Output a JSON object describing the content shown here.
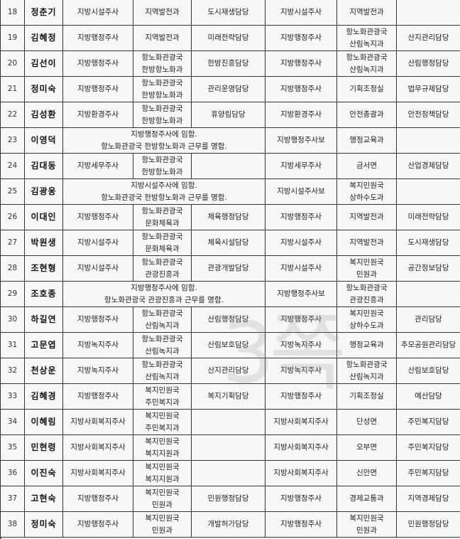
{
  "watermark": "3쪽",
  "rows": [
    {
      "no": "18",
      "name": "정춘기",
      "rank": "지방시설주사",
      "dept": [
        "지역발전과"
      ],
      "team": "도시재생담당",
      "new_rank": "지방시설주사",
      "new_dept": [
        "지역발전과"
      ],
      "new_team": ""
    },
    {
      "no": "19",
      "name": "김혜정",
      "rank": "지방행정주사",
      "dept": [
        "지역발전과"
      ],
      "team": "미래전략담당",
      "new_rank": "지방행정주사",
      "new_dept": [
        "항노화관광국",
        "산림녹지과"
      ],
      "new_team": "산지관리담당"
    },
    {
      "no": "20",
      "name": "김선이",
      "rank": "지방행정주사",
      "dept": [
        "항노화관광국",
        "한방항노화과"
      ],
      "team": "한방진흥담당",
      "new_rank": "지방행정주사",
      "new_dept": [
        "항노화관광국",
        "산림녹지과"
      ],
      "new_team": "산림행정담당"
    },
    {
      "no": "21",
      "name": "정미숙",
      "rank": "지방행정주사",
      "dept": [
        "항노화관광국",
        "한방항노화과"
      ],
      "team": "관리운영담당",
      "new_rank": "지방행정주사",
      "new_dept": [
        "기획조정실"
      ],
      "new_team": "법무규제담당"
    },
    {
      "no": "22",
      "name": "김성환",
      "rank": "지방환경주사",
      "dept": [
        "항노화관광국",
        "한방항노화과"
      ],
      "team": "휴양림담당",
      "new_rank": "지방환경주사",
      "new_dept": [
        "안전총괄과"
      ],
      "new_team": "안전정책담당"
    },
    {
      "no": "23",
      "name": "이영덕",
      "note": [
        "지방행정주사에 임함.",
        "항노화관광국 한방항노화과 근무를 명함."
      ],
      "new_rank": "지방행정주사보",
      "new_dept": [
        "행정교육과"
      ],
      "new_team": ""
    },
    {
      "no": "24",
      "name": "김대동",
      "rank": "지방세무주사",
      "dept": [
        "항노화관광국",
        "한방항노화과"
      ],
      "team": "",
      "new_rank": "지방세무주사",
      "new_dept": [
        "금서면"
      ],
      "new_team": "산업경제담당"
    },
    {
      "no": "25",
      "name": "김광웅",
      "note": [
        "지방시설주사에 임함.",
        "항노화관광국 한방항노화과 근무를 명함."
      ],
      "new_rank": "지방시설주사보",
      "new_dept": [
        "복지민원국",
        "상하수도과"
      ],
      "new_team": ""
    },
    {
      "no": "26",
      "name": "이대인",
      "rank": "지방행정주사",
      "dept": [
        "항노화관광국",
        "문화체육과"
      ],
      "team": "체육행정담당",
      "new_rank": "지방행정주사",
      "new_dept": [
        "지역발전과"
      ],
      "new_team": "미래전략담당"
    },
    {
      "no": "27",
      "name": "박원생",
      "rank": "지방시설주사",
      "dept": [
        "항노화관광국",
        "문화체육과"
      ],
      "team": "체육시설담당",
      "new_rank": "지방시설주사",
      "new_dept": [
        "지역발전과"
      ],
      "new_team": "도시재생담당"
    },
    {
      "no": "28",
      "name": "조현형",
      "rank": "지방시설주사",
      "dept": [
        "항노화관광국",
        "관광진흥과"
      ],
      "team": "관광개발담당",
      "new_rank": "지방시설주사",
      "new_dept": [
        "복지민원국",
        "민원과"
      ],
      "new_team": "공간정보담당"
    },
    {
      "no": "29",
      "name": "조호종",
      "note": [
        "지방행정주사에 임함.",
        "항노화관광국 관광진흥과 근무를 명함."
      ],
      "new_rank": "지방행정주사보",
      "new_dept": [
        "항노화관광국",
        "관광진흥과"
      ],
      "new_team": ""
    },
    {
      "no": "30",
      "name": "하길연",
      "rank": "지방행정주사",
      "dept": [
        "항노화관광국",
        "산림녹지과"
      ],
      "team": "산림행정담당",
      "new_rank": "지방행정주사",
      "new_dept": [
        "복지민원국",
        "상하수도과"
      ],
      "new_team": "관리담당"
    },
    {
      "no": "31",
      "name": "고문엽",
      "rank": "지방녹지주사",
      "dept": [
        "항노화관광국",
        "산림녹지과"
      ],
      "team": "산림보호담당",
      "new_rank": "지방녹지주사",
      "new_dept": [
        "행정교육과"
      ],
      "new_team": "추모공원관리담당"
    },
    {
      "no": "32",
      "name": "천상운",
      "rank": "지방녹지주사",
      "dept": [
        "항노화관광국",
        "산림녹지과"
      ],
      "team": "산지관리담당",
      "new_rank": "지방녹지주사",
      "new_dept": [
        "항노화관광국",
        "산림녹지과"
      ],
      "new_team": "산림보호담당"
    },
    {
      "no": "33",
      "name": "김혜경",
      "rank": "지방행정주사",
      "dept": [
        "복지민원국",
        "주민복지과"
      ],
      "team": "복지기획담당",
      "new_rank": "지방행정주사",
      "new_dept": [
        "기획조정실"
      ],
      "new_team": "예산담당"
    },
    {
      "no": "34",
      "name": "이혜림",
      "rank": "지방사회복지주사",
      "dept": [
        "복지민원국",
        "주민복지과"
      ],
      "team": "",
      "new_rank": "지방사회복지주사",
      "new_dept": [
        "단성면"
      ],
      "new_team": "주민복지담당"
    },
    {
      "no": "35",
      "name": "민현령",
      "rank": "지방사회복지주사",
      "dept": [
        "복지민원국",
        "복지지원과"
      ],
      "team": "",
      "new_rank": "지방사회복지주사",
      "new_dept": [
        "오부면"
      ],
      "new_team": "주민복지담당"
    },
    {
      "no": "36",
      "name": "이진숙",
      "rank": "지방사회복지주사",
      "dept": [
        "복지민원국",
        "복지지원과"
      ],
      "team": "",
      "new_rank": "지방사회복지주사",
      "new_dept": [
        "신안면"
      ],
      "new_team": "주민복지담당"
    },
    {
      "no": "37",
      "name": "고현숙",
      "rank": "지방행정주사",
      "dept": [
        "복지민원국",
        "민원과"
      ],
      "team": "민원행정담당",
      "new_rank": "지방행정주사",
      "new_dept": [
        "경제교통과"
      ],
      "new_team": "지역경제담당"
    },
    {
      "no": "38",
      "name": "정미숙",
      "rank": "지방행정주사",
      "dept": [
        "복지민원국",
        "민원과"
      ],
      "team": "개발허가담당",
      "new_rank": "지방행정주사",
      "new_dept": [
        "복지민원국",
        "민원과"
      ],
      "new_team": "민원행정담당"
    }
  ]
}
